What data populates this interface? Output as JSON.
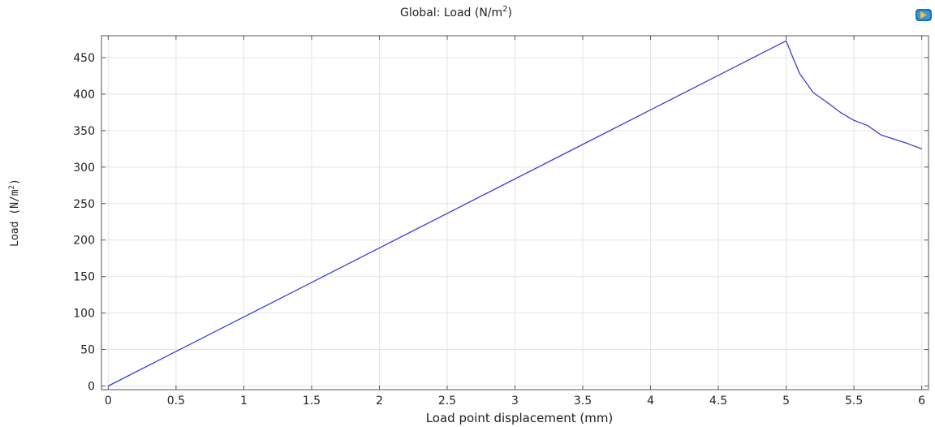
{
  "chart_data": {
    "type": "line",
    "title": "Global: Load (N/m",
    "title_sup": "2",
    "title_suffix": ")",
    "xlabel": "Load point displacement (mm)",
    "ylabel": "Load (N/m",
    "ylabel_sup": "2",
    "ylabel_suffix": ")",
    "xlim": [
      -0.05,
      6.05
    ],
    "ylim": [
      -5,
      480
    ],
    "xticks": [
      0,
      0.5,
      1,
      1.5,
      2,
      2.5,
      3,
      3.5,
      4,
      4.5,
      5,
      5.5,
      6
    ],
    "yticks": [
      0,
      50,
      100,
      150,
      200,
      250,
      300,
      350,
      400,
      450
    ],
    "grid": true,
    "line_color": "#3b3bdc",
    "series": [
      {
        "x": [
          0,
          0.5,
          1,
          1.5,
          2,
          2.5,
          3,
          3.5,
          4,
          4.5,
          5,
          5.05,
          5.1,
          5.2,
          5.3,
          5.4,
          5.5,
          5.6,
          5.7,
          5.8,
          5.9,
          6
        ],
        "y": [
          0,
          47.3,
          94.6,
          141.9,
          189.2,
          236.5,
          283.8,
          331.1,
          378.4,
          425.7,
          473,
          450,
          428,
          402,
          389,
          375,
          364,
          357,
          344,
          338,
          332,
          325
        ]
      }
    ]
  },
  "toolbar": {
    "icon": "camera-icon"
  }
}
